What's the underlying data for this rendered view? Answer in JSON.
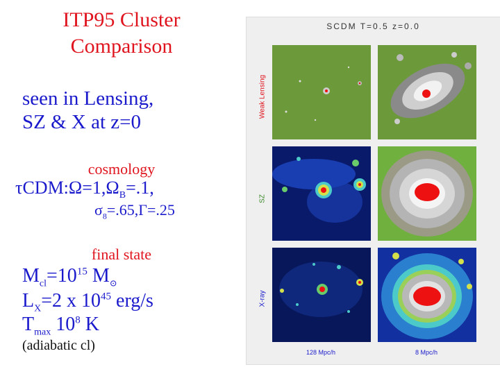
{
  "title_line1": "ITP95 Cluster",
  "title_line2": "Comparison",
  "seen_line1": "seen in Lensing,",
  "seen_line2": "SZ & X at z=0",
  "cosmology_heading": "cosmology",
  "cosmology": {
    "line1_prefix": "τCDM:Ω=1,Ω",
    "line1_sub": "B",
    "line1_suffix": "=.1,",
    "line2_sigma": "σ",
    "line2_sigma_sub": "8",
    "line2_rest": "=.65,Γ=.25"
  },
  "final_state_heading": "final state",
  "final_state": {
    "mass_prefix": "M",
    "mass_sub": "cl",
    "mass_eq": "=10",
    "mass_exp": "15",
    "mass_unit": " M",
    "mass_unit_sub": "⊙",
    "lx_prefix": "L",
    "lx_sub": "X",
    "lx_eq": "=2 x 10",
    "lx_exp": "45",
    "lx_unit": " erg/s",
    "t_prefix": "T",
    "t_sub": "max",
    "t_eq": " 10",
    "t_exp": "8",
    "t_unit": " K",
    "note": "(adiabatic cl)"
  },
  "panel": {
    "title": "SCDM T=0.5 z=0.0",
    "row_labels": [
      "Weak Lensing",
      "SZ",
      "X-ray"
    ],
    "col_labels": [
      "128 Mpc/h",
      "8 Mpc/h"
    ]
  },
  "colors": {
    "title_red": "#e0141e",
    "text_blue": "#1a1acc",
    "lensing_bg": "#6c9a3a",
    "map_dark": "#0a1a6a",
    "core_red": "#ee1111"
  }
}
